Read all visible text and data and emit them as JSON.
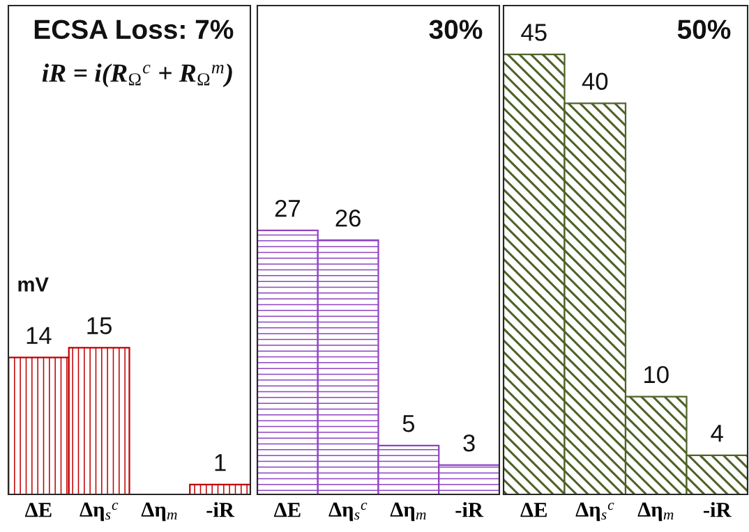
{
  "chart_data": [
    {
      "type": "bar",
      "title": "ECSA Loss: 7%",
      "ylabel": "mV",
      "annotations": [
        "iR = i(R$_{Ω}$$^{c}$ + R$_{Ω}$$^{m}$)"
      ],
      "categories": [
        "ΔE",
        "Δη$_{s}$$^{c}$",
        "Δη$_{m}$",
        "-iR"
      ],
      "values": [
        14,
        15,
        null,
        1
      ],
      "color": "#c00000",
      "ylim": [
        0,
        50
      ],
      "data_labels": true,
      "tick_labels": "x"
    },
    {
      "type": "bar",
      "title": "30%",
      "categories": [
        "ΔE",
        "Δη$_{s}$$^{c}$",
        "Δη$_{m}$",
        "-iR"
      ],
      "values": [
        27,
        26,
        5,
        3
      ],
      "color": "#8e44c4",
      "ylim": [
        0,
        50
      ],
      "data_labels": true,
      "tick_labels": "x"
    },
    {
      "type": "bar",
      "title": "50%",
      "categories": [
        "ΔE",
        "Δη$_{s}$$^{c}$",
        "Δη$_{m}$",
        "-iR"
      ],
      "values": [
        45,
        40,
        10,
        4
      ],
      "color": "#4f6228",
      "ylim": [
        0,
        50
      ],
      "data_labels": true,
      "tick_labels": "x"
    }
  ]
}
